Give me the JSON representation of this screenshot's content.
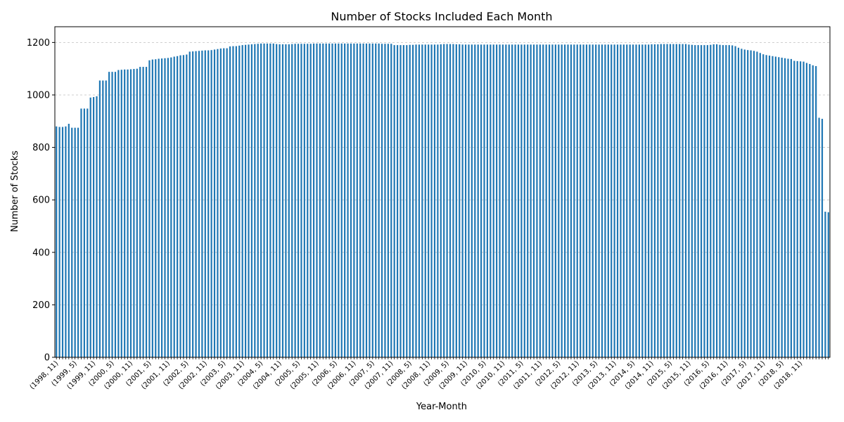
{
  "chart_data": {
    "type": "bar",
    "title": "Number of Stocks Included Each Month",
    "xlabel": "Year-Month",
    "ylabel": "Number of Stocks",
    "ylim": [
      0,
      1260
    ],
    "yticks": [
      0,
      200,
      400,
      600,
      800,
      1000,
      1200
    ],
    "grid": "y-dashed",
    "legend": "none",
    "bar_color": "#1f77b4",
    "x_tick_labels": [
      "(1998, 11)",
      "(1999, 5)",
      "(1999, 11)",
      "(2000, 5)",
      "(2000, 11)",
      "(2001, 5)",
      "(2001, 11)",
      "(2002, 5)",
      "(2002, 11)",
      "(2003, 5)",
      "(2003, 11)",
      "(2004, 5)",
      "(2004, 11)",
      "(2005, 5)",
      "(2005, 11)",
      "(2006, 5)",
      "(2006, 11)",
      "(2007, 5)",
      "(2007, 11)",
      "(2008, 5)",
      "(2008, 11)",
      "(2009, 5)",
      "(2009, 11)",
      "(2010, 5)",
      "(2010, 11)",
      "(2011, 5)",
      "(2011, 11)",
      "(2012, 5)",
      "(2012, 11)",
      "(2013, 5)",
      "(2013, 11)",
      "(2014, 5)",
      "(2014, 11)",
      "(2015, 5)",
      "(2015, 11)",
      "(2016, 5)",
      "(2016, 11)",
      "(2017, 5)",
      "(2017, 11)",
      "(2018, 5)",
      "(2018, 11)"
    ],
    "start": [
      1998,
      11
    ],
    "values": [
      880,
      878,
      878,
      880,
      890,
      875,
      875,
      875,
      948,
      948,
      948,
      990,
      992,
      995,
      1055,
      1055,
      1055,
      1088,
      1088,
      1088,
      1095,
      1096,
      1097,
      1097,
      1098,
      1099,
      1100,
      1107,
      1107,
      1107,
      1132,
      1135,
      1136,
      1138,
      1139,
      1140,
      1141,
      1143,
      1146,
      1148,
      1151,
      1152,
      1154,
      1165,
      1166,
      1167,
      1168,
      1169,
      1170,
      1170,
      1171,
      1173,
      1175,
      1177,
      1178,
      1178,
      1185,
      1186,
      1186,
      1188,
      1190,
      1191,
      1192,
      1193,
      1194,
      1195,
      1196,
      1196,
      1196,
      1196,
      1196,
      1194,
      1193,
      1193,
      1193,
      1193,
      1194,
      1195,
      1195,
      1195,
      1195,
      1195,
      1195,
      1196,
      1196,
      1196,
      1196,
      1196,
      1196,
      1196,
      1196,
      1196,
      1196,
      1196,
      1196,
      1196,
      1196,
      1196,
      1196,
      1196,
      1196,
      1196,
      1196,
      1196,
      1196,
      1195,
      1195,
      1195,
      1195,
      1190,
      1190,
      1190,
      1190,
      1190,
      1191,
      1191,
      1192,
      1192,
      1192,
      1192,
      1192,
      1192,
      1192,
      1192,
      1193,
      1194,
      1194,
      1194,
      1194,
      1193,
      1193,
      1192,
      1192,
      1192,
      1192,
      1192,
      1192,
      1192,
      1192,
      1192,
      1192,
      1192,
      1192,
      1192,
      1192,
      1192,
      1192,
      1192,
      1192,
      1192,
      1192,
      1192,
      1192,
      1192,
      1192,
      1192,
      1192,
      1192,
      1192,
      1192,
      1192,
      1192,
      1192,
      1192,
      1192,
      1192,
      1192,
      1192,
      1192,
      1192,
      1192,
      1192,
      1192,
      1192,
      1192,
      1192,
      1192,
      1192,
      1192,
      1192,
      1192,
      1192,
      1192,
      1192,
      1192,
      1192,
      1192,
      1192,
      1192,
      1192,
      1192,
      1192,
      1193,
      1193,
      1193,
      1194,
      1194,
      1194,
      1194,
      1194,
      1194,
      1194,
      1194,
      1194,
      1192,
      1191,
      1190,
      1190,
      1190,
      1190,
      1190,
      1191,
      1193,
      1193,
      1191,
      1190,
      1190,
      1190,
      1189,
      1186,
      1180,
      1176,
      1173,
      1171,
      1170,
      1168,
      1165,
      1160,
      1155,
      1152,
      1150,
      1148,
      1146,
      1144,
      1142,
      1140,
      1138,
      1137,
      1130,
      1129,
      1128,
      1127,
      1122,
      1118,
      1113,
      1110,
      913,
      909,
      555,
      553
    ]
  }
}
